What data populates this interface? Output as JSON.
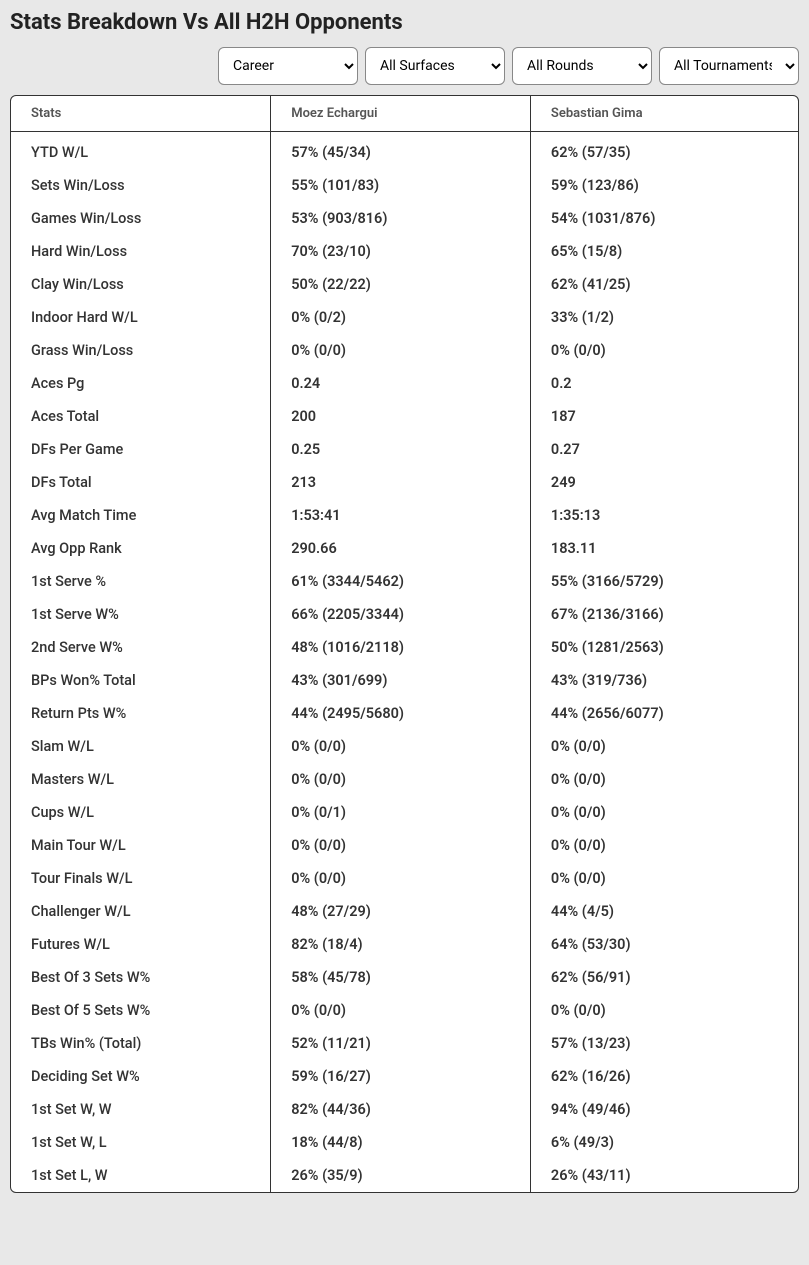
{
  "title": "Stats Breakdown Vs All H2H Opponents",
  "filters": {
    "period": "Career",
    "surface": "All Surfaces",
    "round": "All Rounds",
    "tournament": "All Tournaments"
  },
  "table": {
    "columns": [
      "Stats",
      "Moez Echargui",
      "Sebastian Gima"
    ],
    "rows": [
      [
        "YTD W/L",
        "57% (45/34)",
        "62% (57/35)"
      ],
      [
        "Sets Win/Loss",
        "55% (101/83)",
        "59% (123/86)"
      ],
      [
        "Games Win/Loss",
        "53% (903/816)",
        "54% (1031/876)"
      ],
      [
        "Hard Win/Loss",
        "70% (23/10)",
        "65% (15/8)"
      ],
      [
        "Clay Win/Loss",
        "50% (22/22)",
        "62% (41/25)"
      ],
      [
        "Indoor Hard W/L",
        "0% (0/2)",
        "33% (1/2)"
      ],
      [
        "Grass Win/Loss",
        "0% (0/0)",
        "0% (0/0)"
      ],
      [
        "Aces Pg",
        "0.24",
        "0.2"
      ],
      [
        "Aces Total",
        "200",
        "187"
      ],
      [
        "DFs Per Game",
        "0.25",
        "0.27"
      ],
      [
        "DFs Total",
        "213",
        "249"
      ],
      [
        "Avg Match Time",
        "1:53:41",
        "1:35:13"
      ],
      [
        "Avg Opp Rank",
        "290.66",
        "183.11"
      ],
      [
        "1st Serve %",
        "61% (3344/5462)",
        "55% (3166/5729)"
      ],
      [
        "1st Serve W%",
        "66% (2205/3344)",
        "67% (2136/3166)"
      ],
      [
        "2nd Serve W%",
        "48% (1016/2118)",
        "50% (1281/2563)"
      ],
      [
        "BPs Won% Total",
        "43% (301/699)",
        "43% (319/736)"
      ],
      [
        "Return Pts W%",
        "44% (2495/5680)",
        "44% (2656/6077)"
      ],
      [
        "Slam W/L",
        "0% (0/0)",
        "0% (0/0)"
      ],
      [
        "Masters W/L",
        "0% (0/0)",
        "0% (0/0)"
      ],
      [
        "Cups W/L",
        "0% (0/1)",
        "0% (0/0)"
      ],
      [
        "Main Tour W/L",
        "0% (0/0)",
        "0% (0/0)"
      ],
      [
        "Tour Finals W/L",
        "0% (0/0)",
        "0% (0/0)"
      ],
      [
        "Challenger W/L",
        "48% (27/29)",
        "44% (4/5)"
      ],
      [
        "Futures W/L",
        "82% (18/4)",
        "64% (53/30)"
      ],
      [
        "Best Of 3 Sets W%",
        "58% (45/78)",
        "62% (56/91)"
      ],
      [
        "Best Of 5 Sets W%",
        "0% (0/0)",
        "0% (0/0)"
      ],
      [
        "TBs Win% (Total)",
        "52% (11/21)",
        "57% (13/23)"
      ],
      [
        "Deciding Set W%",
        "59% (16/27)",
        "62% (16/26)"
      ],
      [
        "1st Set W, W",
        "82% (44/36)",
        "94% (49/46)"
      ],
      [
        "1st Set W, L",
        "18% (44/8)",
        "6% (49/3)"
      ],
      [
        "1st Set L, W",
        "26% (35/9)",
        "26% (43/11)"
      ]
    ]
  }
}
